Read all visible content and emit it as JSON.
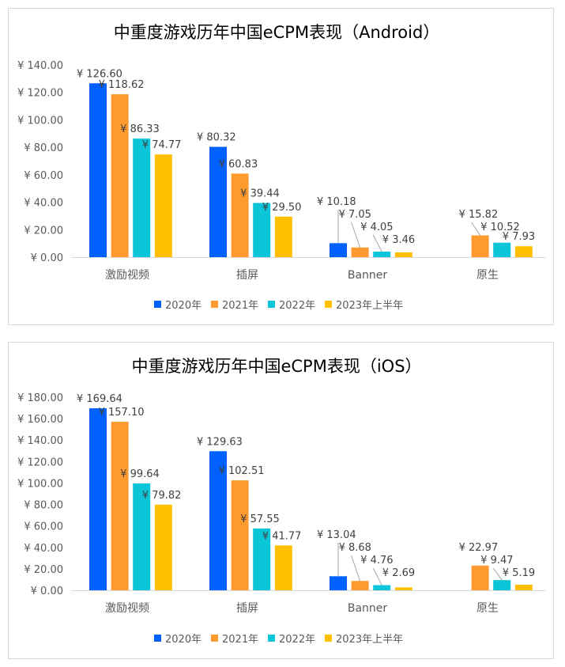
{
  "chart_data": [
    {
      "type": "bar",
      "title": "中重度游戏历年中国eCPM表现（Android）",
      "categories": [
        "激励视频",
        "插屏",
        "Banner",
        "原生"
      ],
      "series": [
        {
          "name": "2020年",
          "color": "#0061FF",
          "values": [
            126.6,
            80.32,
            10.18,
            null
          ],
          "labels": [
            "¥ 126.60",
            "¥ 80.32",
            "¥ 10.18",
            null
          ]
        },
        {
          "name": "2021年",
          "color": "#FF9A2E",
          "values": [
            118.62,
            60.83,
            7.05,
            15.82
          ],
          "labels": [
            "¥ 118.62",
            "¥ 60.83",
            "¥ 7.05",
            "¥ 15.82"
          ]
        },
        {
          "name": "2022年",
          "color": "#0BC5D8",
          "values": [
            86.33,
            39.44,
            4.05,
            10.52
          ],
          "labels": [
            "¥ 86.33",
            "¥ 39.44",
            "¥ 4.05",
            "¥ 10.52"
          ]
        },
        {
          "name": "2023年上半年",
          "color": "#FFC000",
          "values": [
            74.77,
            29.5,
            3.46,
            7.93
          ],
          "labels": [
            "¥ 74.77",
            "¥ 29.50",
            "¥ 3.46",
            "¥ 7.93"
          ]
        }
      ],
      "ylim": [
        0,
        140
      ],
      "yticks": [
        "¥ 0.00",
        "¥ 20.00",
        "¥ 40.00",
        "¥ 60.00",
        "¥ 80.00",
        "¥ 100.00",
        "¥ 120.00",
        "¥ 140.00"
      ],
      "legend": "bottom",
      "grid": false
    },
    {
      "type": "bar",
      "title": "中重度游戏历年中国eCPM表现（iOS）",
      "categories": [
        "激励视频",
        "插屏",
        "Banner",
        "原生"
      ],
      "series": [
        {
          "name": "2020年",
          "color": "#0061FF",
          "values": [
            169.64,
            129.63,
            13.04,
            null
          ],
          "labels": [
            "¥ 169.64",
            "¥ 129.63",
            "¥ 13.04",
            null
          ]
        },
        {
          "name": "2021年",
          "color": "#FF9A2E",
          "values": [
            157.1,
            102.51,
            8.68,
            22.97
          ],
          "labels": [
            "¥ 157.10",
            "¥ 102.51",
            "¥ 8.68",
            "¥ 22.97"
          ]
        },
        {
          "name": "2022年",
          "color": "#0BC5D8",
          "values": [
            99.64,
            57.55,
            4.76,
            9.47
          ],
          "labels": [
            "¥ 99.64",
            "¥ 57.55",
            "¥ 4.76",
            "¥ 9.47"
          ]
        },
        {
          "name": "2023年上半年",
          "color": "#FFC000",
          "values": [
            79.82,
            41.77,
            2.69,
            5.19
          ],
          "labels": [
            "¥ 79.82",
            "¥ 41.77",
            "¥ 2.69",
            "¥ 5.19"
          ]
        }
      ],
      "ylim": [
        0,
        180
      ],
      "yticks": [
        "¥ 0.00",
        "¥ 20.00",
        "¥ 40.00",
        "¥ 60.00",
        "¥ 80.00",
        "¥ 100.00",
        "¥ 120.00",
        "¥ 140.00",
        "¥ 160.00",
        "¥ 180.00"
      ],
      "legend": "bottom",
      "grid": false
    }
  ]
}
